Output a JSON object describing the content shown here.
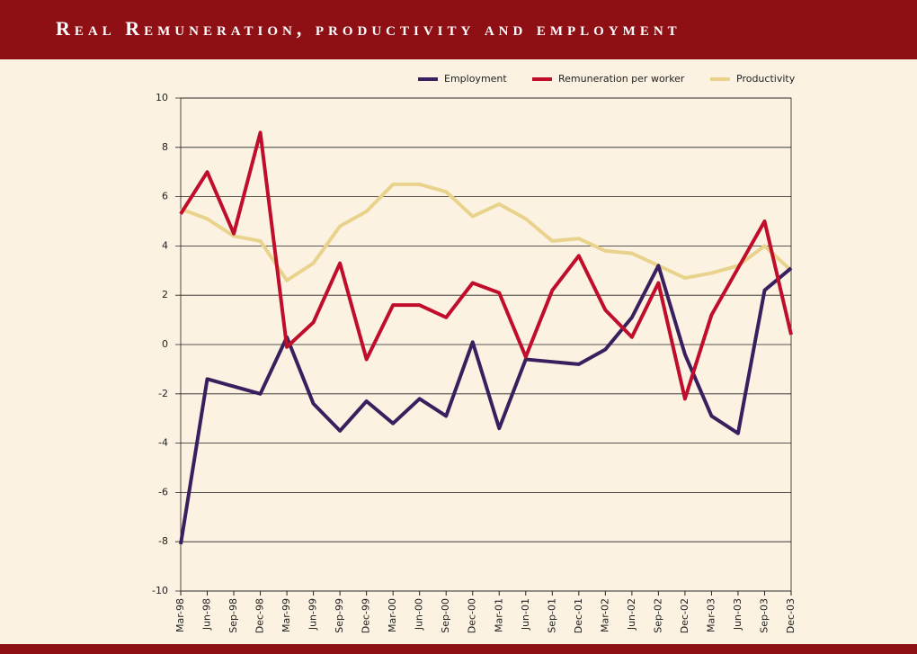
{
  "chart_data": {
    "type": "line",
    "title": "Real Remuneration, productivity and employment",
    "categories": [
      "Mar-98",
      "Jun-98",
      "Sep-98",
      "Dec-98",
      "Mar-99",
      "Jun-99",
      "Sep-99",
      "Dec-99",
      "Mar-00",
      "Jun-00",
      "Sep-00",
      "Dec-00",
      "Mar-01",
      "Jun-01",
      "Sep-01",
      "Dec-01",
      "Mar-02",
      "Jun-02",
      "Sep-02",
      "Dec-02",
      "Mar-03",
      "Jun-03",
      "Sep-03",
      "Dec-03"
    ],
    "series": [
      {
        "name": "Employment",
        "color": "#3a1f5e",
        "values": [
          -8.1,
          -1.4,
          -1.7,
          -2.0,
          0.3,
          -2.4,
          -3.5,
          -2.3,
          -3.2,
          -2.2,
          -2.9,
          0.1,
          -3.4,
          -0.6,
          -0.7,
          -0.8,
          -0.2,
          1.1,
          3.2,
          -0.4,
          -2.9,
          -3.6,
          2.2,
          3.1
        ]
      },
      {
        "name": "Remuneration per worker",
        "color": "#c00d2b",
        "values": [
          5.3,
          7.0,
          4.5,
          8.6,
          -0.1,
          0.9,
          3.3,
          -0.6,
          1.6,
          1.6,
          1.1,
          2.5,
          2.1,
          -0.5,
          2.2,
          3.6,
          1.4,
          0.3,
          2.5,
          -2.2,
          1.2,
          3.1,
          5.0,
          0.4
        ]
      },
      {
        "name": "Productivity",
        "color": "#e9d38c",
        "values": [
          5.5,
          5.1,
          4.4,
          4.2,
          2.6,
          3.3,
          4.8,
          5.4,
          6.5,
          6.5,
          6.2,
          5.2,
          5.7,
          5.1,
          4.2,
          4.3,
          3.8,
          3.7,
          3.2,
          2.7,
          2.9,
          3.2,
          4.0,
          3.0
        ]
      }
    ],
    "ylim": [
      -10,
      10
    ],
    "yticks": [
      -10,
      -8,
      -6,
      -4,
      -2,
      0,
      2,
      4,
      6,
      8,
      10
    ],
    "grid": true,
    "legend": "top"
  }
}
